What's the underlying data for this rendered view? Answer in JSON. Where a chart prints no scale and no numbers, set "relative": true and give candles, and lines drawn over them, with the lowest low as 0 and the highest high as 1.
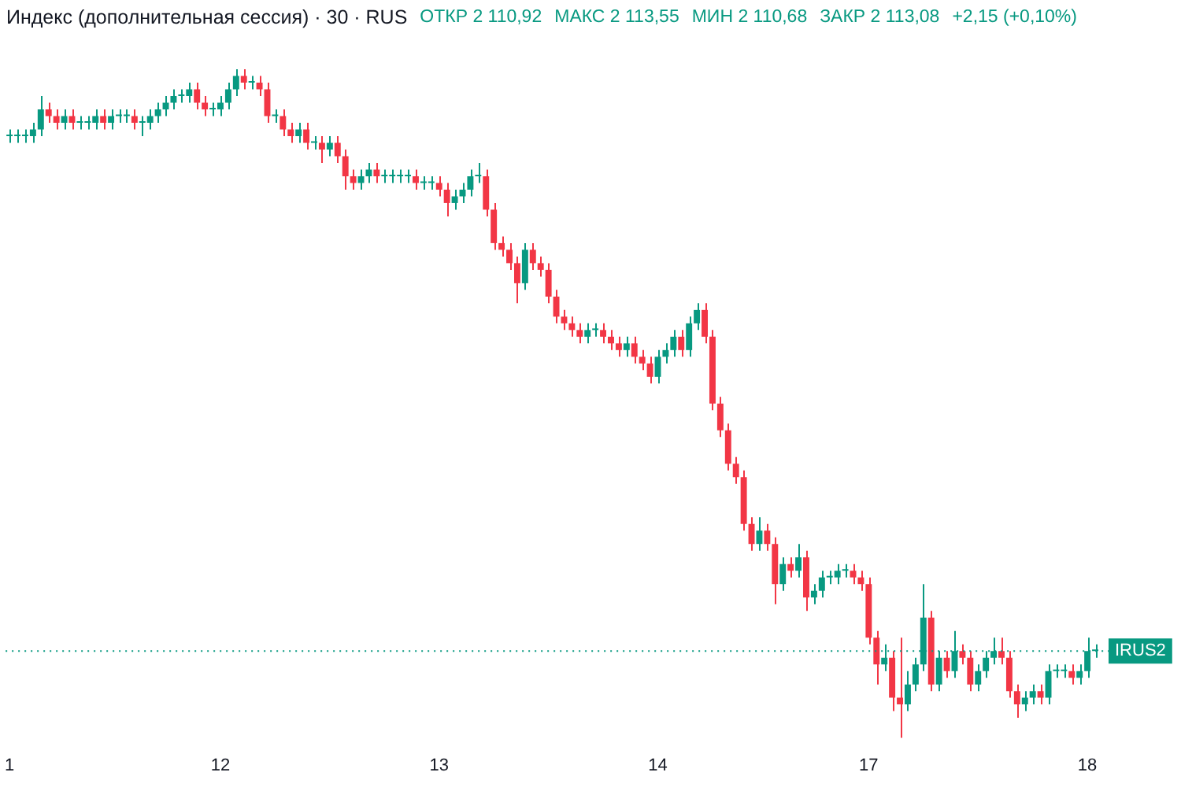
{
  "chart_data": {
    "type": "candlestick",
    "title": "Индекс (дополнительная сессия) · 30 · RUS",
    "annotations": [
      "ОТКР 2 110,92",
      "МАКС 2 113,55",
      "МИН 2 110,68",
      "ЗАКР 2 113,08",
      "+2,15 (+0,10%)"
    ],
    "relative": true,
    "categories": [
      "1",
      null,
      null,
      null,
      null,
      null,
      null,
      null,
      null,
      null,
      null,
      null,
      null,
      null,
      null,
      null,
      null,
      null,
      null,
      null,
      null,
      null,
      null,
      null,
      null,
      null,
      null,
      "12",
      null,
      null,
      null,
      null,
      null,
      null,
      null,
      null,
      null,
      null,
      null,
      null,
      null,
      null,
      null,
      null,
      null,
      null,
      null,
      null,
      null,
      null,
      null,
      null,
      null,
      null,
      null,
      "13",
      null,
      null,
      null,
      null,
      null,
      null,
      null,
      null,
      null,
      null,
      null,
      null,
      null,
      null,
      null,
      null,
      null,
      null,
      null,
      null,
      null,
      null,
      null,
      null,
      null,
      null,
      null,
      "14",
      null,
      null,
      null,
      null,
      null,
      null,
      null,
      null,
      null,
      null,
      null,
      null,
      null,
      null,
      null,
      null,
      null,
      null,
      null,
      null,
      null,
      null,
      null,
      null,
      null,
      null,
      "17",
      null,
      null,
      null,
      null,
      null,
      null,
      null,
      null,
      null,
      null,
      null,
      null,
      null,
      null,
      null,
      null,
      null,
      null,
      null,
      null,
      null,
      null,
      null,
      null,
      null,
      null,
      null,
      "18",
      null
    ],
    "ohlc": [
      [
        0.9,
        0.91,
        0.89,
        0.9
      ],
      [
        0.9,
        0.91,
        0.89,
        0.9
      ],
      [
        0.9,
        0.91,
        0.89,
        0.9
      ],
      [
        0.9,
        0.92,
        0.89,
        0.91
      ],
      [
        0.91,
        0.96,
        0.9,
        0.94
      ],
      [
        0.94,
        0.95,
        0.92,
        0.93
      ],
      [
        0.93,
        0.94,
        0.91,
        0.92
      ],
      [
        0.92,
        0.94,
        0.91,
        0.93
      ],
      [
        0.93,
        0.94,
        0.91,
        0.92
      ],
      [
        0.92,
        0.93,
        0.91,
        0.92
      ],
      [
        0.92,
        0.93,
        0.91,
        0.92
      ],
      [
        0.92,
        0.94,
        0.91,
        0.93
      ],
      [
        0.93,
        0.94,
        0.91,
        0.92
      ],
      [
        0.92,
        0.94,
        0.91,
        0.93
      ],
      [
        0.93,
        0.94,
        0.92,
        0.93
      ],
      [
        0.93,
        0.94,
        0.92,
        0.93
      ],
      [
        0.93,
        0.94,
        0.91,
        0.92
      ],
      [
        0.92,
        0.93,
        0.9,
        0.92
      ],
      [
        0.92,
        0.94,
        0.91,
        0.93
      ],
      [
        0.93,
        0.95,
        0.92,
        0.94
      ],
      [
        0.94,
        0.96,
        0.93,
        0.95
      ],
      [
        0.95,
        0.97,
        0.94,
        0.96
      ],
      [
        0.96,
        0.97,
        0.95,
        0.96
      ],
      [
        0.96,
        0.98,
        0.95,
        0.97
      ],
      [
        0.97,
        0.98,
        0.94,
        0.95
      ],
      [
        0.95,
        0.96,
        0.93,
        0.94
      ],
      [
        0.94,
        0.95,
        0.93,
        0.94
      ],
      [
        0.94,
        0.96,
        0.93,
        0.95
      ],
      [
        0.95,
        0.98,
        0.94,
        0.97
      ],
      [
        0.97,
        1.0,
        0.96,
        0.99
      ],
      [
        0.99,
        1.0,
        0.97,
        0.98
      ],
      [
        0.98,
        0.99,
        0.97,
        0.98
      ],
      [
        0.98,
        0.99,
        0.96,
        0.97
      ],
      [
        0.97,
        0.98,
        0.92,
        0.93
      ],
      [
        0.93,
        0.94,
        0.92,
        0.93
      ],
      [
        0.93,
        0.94,
        0.9,
        0.91
      ],
      [
        0.91,
        0.92,
        0.89,
        0.9
      ],
      [
        0.9,
        0.92,
        0.89,
        0.91
      ],
      [
        0.91,
        0.92,
        0.88,
        0.89
      ],
      [
        0.89,
        0.9,
        0.88,
        0.89
      ],
      [
        0.89,
        0.9,
        0.86,
        0.88
      ],
      [
        0.88,
        0.9,
        0.87,
        0.89
      ],
      [
        0.89,
        0.9,
        0.86,
        0.87
      ],
      [
        0.87,
        0.88,
        0.82,
        0.84
      ],
      [
        0.84,
        0.85,
        0.82,
        0.83
      ],
      [
        0.83,
        0.85,
        0.82,
        0.84
      ],
      [
        0.84,
        0.86,
        0.83,
        0.85
      ],
      [
        0.85,
        0.86,
        0.83,
        0.84
      ],
      [
        0.84,
        0.85,
        0.83,
        0.84
      ],
      [
        0.84,
        0.85,
        0.83,
        0.84
      ],
      [
        0.84,
        0.85,
        0.83,
        0.84
      ],
      [
        0.84,
        0.85,
        0.83,
        0.84
      ],
      [
        0.84,
        0.85,
        0.82,
        0.83
      ],
      [
        0.83,
        0.84,
        0.82,
        0.83
      ],
      [
        0.83,
        0.84,
        0.82,
        0.83
      ],
      [
        0.83,
        0.84,
        0.81,
        0.82
      ],
      [
        0.82,
        0.83,
        0.78,
        0.8
      ],
      [
        0.8,
        0.82,
        0.79,
        0.81
      ],
      [
        0.81,
        0.83,
        0.8,
        0.82
      ],
      [
        0.82,
        0.85,
        0.81,
        0.84
      ],
      [
        0.84,
        0.86,
        0.83,
        0.84
      ],
      [
        0.84,
        0.85,
        0.78,
        0.79
      ],
      [
        0.79,
        0.8,
        0.73,
        0.74
      ],
      [
        0.74,
        0.75,
        0.72,
        0.73
      ],
      [
        0.73,
        0.74,
        0.7,
        0.71
      ],
      [
        0.71,
        0.72,
        0.65,
        0.68
      ],
      [
        0.68,
        0.74,
        0.67,
        0.73
      ],
      [
        0.73,
        0.74,
        0.7,
        0.71
      ],
      [
        0.71,
        0.72,
        0.69,
        0.7
      ],
      [
        0.7,
        0.71,
        0.65,
        0.66
      ],
      [
        0.66,
        0.67,
        0.62,
        0.63
      ],
      [
        0.63,
        0.64,
        0.61,
        0.62
      ],
      [
        0.62,
        0.63,
        0.6,
        0.61
      ],
      [
        0.61,
        0.62,
        0.59,
        0.6
      ],
      [
        0.6,
        0.62,
        0.59,
        0.61
      ],
      [
        0.61,
        0.62,
        0.6,
        0.61
      ],
      [
        0.61,
        0.62,
        0.59,
        0.6
      ],
      [
        0.6,
        0.61,
        0.58,
        0.59
      ],
      [
        0.59,
        0.6,
        0.57,
        0.58
      ],
      [
        0.58,
        0.6,
        0.57,
        0.59
      ],
      [
        0.59,
        0.6,
        0.56,
        0.57
      ],
      [
        0.57,
        0.58,
        0.55,
        0.56
      ],
      [
        0.56,
        0.57,
        0.53,
        0.54
      ],
      [
        0.54,
        0.58,
        0.53,
        0.57
      ],
      [
        0.57,
        0.59,
        0.56,
        0.58
      ],
      [
        0.58,
        0.61,
        0.57,
        0.6
      ],
      [
        0.6,
        0.61,
        0.57,
        0.58
      ],
      [
        0.58,
        0.63,
        0.57,
        0.62
      ],
      [
        0.62,
        0.65,
        0.61,
        0.64
      ],
      [
        0.64,
        0.65,
        0.59,
        0.6
      ],
      [
        0.6,
        0.61,
        0.49,
        0.5
      ],
      [
        0.5,
        0.51,
        0.45,
        0.46
      ],
      [
        0.46,
        0.47,
        0.4,
        0.41
      ],
      [
        0.41,
        0.42,
        0.38,
        0.39
      ],
      [
        0.39,
        0.4,
        0.31,
        0.32
      ],
      [
        0.32,
        0.33,
        0.28,
        0.29
      ],
      [
        0.29,
        0.33,
        0.28,
        0.31
      ],
      [
        0.31,
        0.32,
        0.28,
        0.29
      ],
      [
        0.29,
        0.3,
        0.2,
        0.23
      ],
      [
        0.23,
        0.27,
        0.22,
        0.26
      ],
      [
        0.26,
        0.27,
        0.24,
        0.25
      ],
      [
        0.25,
        0.29,
        0.24,
        0.27
      ],
      [
        0.27,
        0.28,
        0.19,
        0.21
      ],
      [
        0.21,
        0.23,
        0.2,
        0.22
      ],
      [
        0.22,
        0.25,
        0.21,
        0.24
      ],
      [
        0.24,
        0.25,
        0.23,
        0.24
      ],
      [
        0.24,
        0.26,
        0.23,
        0.25
      ],
      [
        0.25,
        0.26,
        0.24,
        0.25
      ],
      [
        0.25,
        0.26,
        0.23,
        0.24
      ],
      [
        0.24,
        0.25,
        0.22,
        0.23
      ],
      [
        0.23,
        0.24,
        0.14,
        0.15
      ],
      [
        0.15,
        0.16,
        0.08,
        0.11
      ],
      [
        0.11,
        0.14,
        0.1,
        0.12
      ],
      [
        0.12,
        0.13,
        0.04,
        0.06
      ],
      [
        0.06,
        0.15,
        0.0,
        0.05
      ],
      [
        0.05,
        0.1,
        0.04,
        0.08
      ],
      [
        0.08,
        0.12,
        0.07,
        0.11
      ],
      [
        0.11,
        0.23,
        0.1,
        0.18
      ],
      [
        0.18,
        0.19,
        0.07,
        0.08
      ],
      [
        0.08,
        0.13,
        0.07,
        0.12
      ],
      [
        0.12,
        0.13,
        0.09,
        0.1
      ],
      [
        0.1,
        0.16,
        0.09,
        0.13
      ],
      [
        0.13,
        0.14,
        0.11,
        0.12
      ],
      [
        0.12,
        0.13,
        0.07,
        0.08
      ],
      [
        0.08,
        0.11,
        0.07,
        0.1
      ],
      [
        0.1,
        0.13,
        0.09,
        0.12
      ],
      [
        0.12,
        0.15,
        0.11,
        0.13
      ],
      [
        0.13,
        0.15,
        0.11,
        0.12
      ],
      [
        0.12,
        0.13,
        0.06,
        0.07
      ],
      [
        0.07,
        0.08,
        0.03,
        0.05
      ],
      [
        0.05,
        0.07,
        0.04,
        0.06
      ],
      [
        0.06,
        0.08,
        0.05,
        0.07
      ],
      [
        0.07,
        0.08,
        0.05,
        0.06
      ],
      [
        0.06,
        0.11,
        0.05,
        0.1
      ],
      [
        0.1,
        0.11,
        0.09,
        0.1
      ],
      [
        0.1,
        0.11,
        0.09,
        0.1
      ],
      [
        0.1,
        0.11,
        0.08,
        0.09
      ],
      [
        0.09,
        0.11,
        0.08,
        0.1
      ],
      [
        0.1,
        0.15,
        0.09,
        0.13
      ],
      [
        0.13,
        0.14,
        0.12,
        0.13
      ]
    ],
    "colors": [
      "#089981",
      "#089981",
      "#089981",
      "#089981",
      "#089981",
      "#f23645",
      "#f23645",
      "#089981",
      "#f23645",
      "#089981",
      "#089981",
      "#089981",
      "#f23645",
      "#089981",
      "#089981",
      "#089981",
      "#f23645",
      "#089981",
      "#089981",
      "#089981",
      "#089981",
      "#089981",
      "#089981",
      "#089981",
      "#f23645",
      "#f23645",
      "#089981",
      "#089981",
      "#089981",
      "#089981",
      "#f23645",
      "#089981",
      "#f23645",
      "#f23645",
      "#089981",
      "#f23645",
      "#f23645",
      "#089981",
      "#f23645",
      "#089981",
      "#f23645",
      "#089981",
      "#f23645",
      "#f23645",
      "#f23645",
      "#089981",
      "#089981",
      "#f23645",
      "#089981",
      "#089981",
      "#089981",
      "#089981",
      "#f23645",
      "#089981",
      "#089981",
      "#f23645",
      "#f23645",
      "#089981",
      "#089981",
      "#089981",
      "#089981",
      "#f23645",
      "#f23645",
      "#f23645",
      "#f23645",
      "#f23645",
      "#089981",
      "#f23645",
      "#f23645",
      "#f23645",
      "#f23645",
      "#f23645",
      "#f23645",
      "#f23645",
      "#089981",
      "#089981",
      "#f23645",
      "#f23645",
      "#f23645",
      "#089981",
      "#f23645",
      "#f23645",
      "#f23645",
      "#089981",
      "#089981",
      "#089981",
      "#f23645",
      "#089981",
      "#089981",
      "#f23645",
      "#f23645",
      "#f23645",
      "#f23645",
      "#f23645",
      "#f23645",
      "#f23645",
      "#089981",
      "#f23645",
      "#f23645",
      "#089981",
      "#f23645",
      "#089981",
      "#f23645",
      "#089981",
      "#089981",
      "#089981",
      "#089981",
      "#089981",
      "#f23645",
      "#f23645",
      "#f23645",
      "#f23645",
      "#089981",
      "#f23645",
      "#f23645",
      "#089981",
      "#089981",
      "#089981",
      "#f23645",
      "#089981",
      "#f23645",
      "#089981",
      "#f23645",
      "#f23645",
      "#089981",
      "#089981",
      "#089981",
      "#f23645",
      "#f23645",
      "#f23645",
      "#089981",
      "#089981",
      "#f23645",
      "#089981",
      "#089981",
      "#089981",
      "#f23645",
      "#089981",
      "#089981",
      "#089981"
    ],
    "ref_lines": [
      {
        "axis": "y",
        "value": 0.13,
        "label": "IRUS2",
        "color": "#089981",
        "line_style": "dotted"
      }
    ],
    "legend": false
  }
}
